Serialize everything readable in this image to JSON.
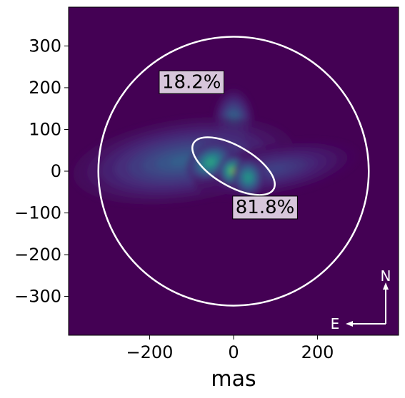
{
  "chart_data": {
    "type": "heatmap",
    "title": "",
    "xlabel": "mas",
    "ylabel": "",
    "xlim": [
      -393,
      393
    ],
    "ylim": [
      -393,
      393
    ],
    "x_ticks": [
      -200,
      0,
      200
    ],
    "x_tick_labels": [
      "−200",
      "0",
      "200"
    ],
    "y_ticks": [
      300,
      200,
      100,
      0,
      -100,
      -200,
      -300
    ],
    "y_tick_labels": [
      "300",
      "200",
      "100",
      "0",
      "−100",
      "−200",
      "−300"
    ],
    "colormap": "viridis",
    "background_color": "#440154",
    "blobs": [
      {
        "x": 0,
        "y": 120,
        "sx": 22,
        "sy": 35,
        "rot": 0,
        "amp": 0.45
      },
      {
        "x": -120,
        "y": 25,
        "sx": 120,
        "sy": 45,
        "rot": -8,
        "amp": 0.38
      },
      {
        "x": 100,
        "y": 5,
        "sx": 90,
        "sy": 28,
        "rot": -10,
        "amp": 0.25
      },
      {
        "x": -55,
        "y": 22,
        "sx": 28,
        "sy": 20,
        "rot": -30,
        "amp": 0.75
      },
      {
        "x": 0,
        "y": 0,
        "sx": 18,
        "sy": 18,
        "rot": 0,
        "amp": 1.0
      },
      {
        "x": 35,
        "y": -15,
        "sx": 18,
        "sy": 22,
        "rot": 0,
        "amp": 0.7
      }
    ],
    "regions": [
      {
        "name": "outer-circle",
        "shape": "circle",
        "cx": 0,
        "cy": 0,
        "r": 322,
        "label": "18.2%",
        "label_x": -100,
        "label_y": 213,
        "color": "#ffffff"
      },
      {
        "name": "inner-ellipse",
        "shape": "ellipse",
        "cx": 0,
        "cy": 12,
        "rx": 110,
        "ry": 48,
        "angle": -30,
        "label": "81.8%",
        "label_x": 75,
        "label_y": -87,
        "color": "#ffffff"
      }
    ],
    "compass": {
      "north_label": "N",
      "east_label": "E",
      "color": "#ffffff"
    }
  }
}
